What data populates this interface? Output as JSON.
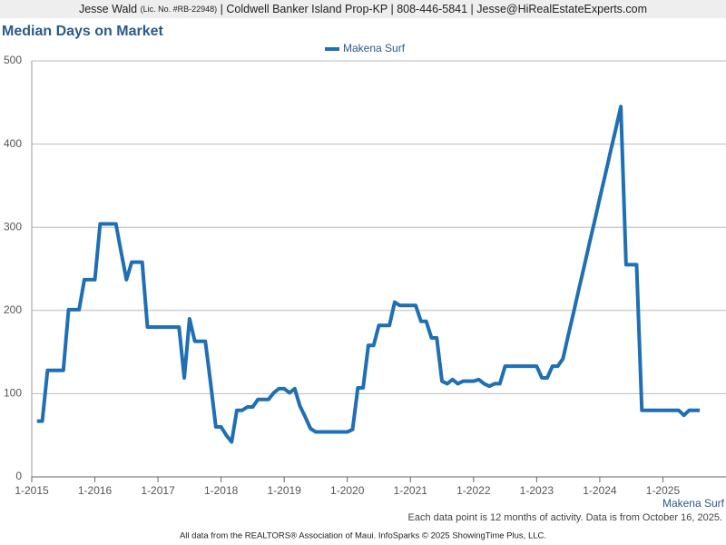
{
  "header": {
    "name": "Jesse Wald",
    "license": "(Lic. No. #RB-22948)",
    "contact": "| Coldwell Banker Island Prop-KP | 808-446-5841 | Jesse@HiRealEstateExperts.com"
  },
  "chart_data": {
    "type": "line",
    "title": "Median Days on Market",
    "x": [
      "2-2015",
      "3-2015",
      "4-2015",
      "5-2015",
      "6-2015",
      "7-2015",
      "8-2015",
      "9-2015",
      "10-2015",
      "11-2015",
      "12-2015",
      "1-2016",
      "2-2016",
      "3-2016",
      "4-2016",
      "5-2016",
      "6-2016",
      "7-2016",
      "8-2016",
      "9-2016",
      "10-2016",
      "11-2016",
      "12-2016",
      "1-2017",
      "2-2017",
      "3-2017",
      "4-2017",
      "5-2017",
      "6-2017",
      "7-2017",
      "8-2017",
      "9-2017",
      "10-2017",
      "11-2017",
      "12-2017",
      "1-2018",
      "2-2018",
      "3-2018",
      "4-2018",
      "5-2018",
      "6-2018",
      "7-2018",
      "8-2018",
      "9-2018",
      "10-2018",
      "11-2018",
      "12-2018",
      "1-2019",
      "2-2019",
      "3-2019",
      "4-2019",
      "5-2019",
      "6-2019",
      "7-2019",
      "8-2019",
      "9-2019",
      "10-2019",
      "11-2019",
      "12-2019",
      "1-2020",
      "2-2020",
      "3-2020",
      "4-2020",
      "5-2020",
      "6-2020",
      "7-2020",
      "8-2020",
      "9-2020",
      "10-2020",
      "11-2020",
      "12-2020",
      "1-2021",
      "2-2021",
      "3-2021",
      "4-2021",
      "5-2021",
      "6-2021",
      "7-2021",
      "8-2021",
      "9-2021",
      "10-2021",
      "11-2021",
      "12-2021",
      "1-2022",
      "2-2022",
      "3-2022",
      "4-2022",
      "5-2022",
      "6-2022",
      "7-2022",
      "8-2022",
      "9-2022",
      "10-2022",
      "11-2022",
      "12-2022",
      "1-2023",
      "2-2023",
      "3-2023",
      "4-2023",
      "5-2023",
      "6-2023",
      "7-2023",
      "8-2023",
      "9-2023",
      "10-2023",
      "11-2023",
      "12-2023",
      "1-2024",
      "2-2024",
      "3-2024",
      "4-2024",
      "5-2024",
      "6-2024",
      "7-2024",
      "8-2024",
      "9-2024",
      "10-2024",
      "11-2024",
      "12-2024",
      "1-2025",
      "2-2025",
      "3-2025",
      "4-2025",
      "5-2025",
      "6-2025",
      "7-2025",
      "8-2025"
    ],
    "series": [
      {
        "name": "Makena Surf",
        "color": "#1f6fb4",
        "values": [
          67,
          67,
          128,
          128,
          128,
          128,
          201,
          201,
          201,
          237,
          237,
          237,
          304,
          304,
          304,
          304,
          270,
          237,
          258,
          258,
          258,
          180,
          180,
          180,
          180,
          180,
          180,
          180,
          119,
          190,
          163,
          163,
          163,
          113,
          60,
          60,
          50,
          42,
          80,
          80,
          84,
          84,
          93,
          93,
          93,
          101,
          106,
          106,
          101,
          106,
          85,
          72,
          58,
          54,
          54,
          54,
          54,
          54,
          54,
          54,
          57,
          107,
          107,
          158,
          158,
          182,
          182,
          182,
          210,
          206,
          206,
          206,
          206,
          187,
          187,
          167,
          167,
          115,
          112,
          117,
          112,
          115,
          115,
          115,
          117,
          112,
          109,
          112,
          112,
          133,
          133,
          133,
          133,
          133,
          133,
          133,
          119,
          119,
          133,
          133,
          142,
          170,
          197,
          225,
          252,
          280,
          307,
          335,
          362,
          390,
          417,
          445,
          255,
          255,
          255,
          80,
          80,
          80,
          80,
          80,
          80,
          80,
          80,
          74,
          80,
          80,
          80
        ]
      }
    ],
    "xlim": [
      "1-2015",
      "1-2026"
    ],
    "xticks": [
      "1-2015",
      "1-2016",
      "1-2017",
      "1-2018",
      "1-2019",
      "1-2020",
      "1-2021",
      "1-2022",
      "1-2023",
      "1-2024",
      "1-2025"
    ],
    "ylim": [
      0,
      500
    ],
    "yticks": [
      0,
      100,
      200,
      300,
      400,
      500
    ],
    "grid": true,
    "legend": "top",
    "note": "Each data point is 12 months of activity. Data is from October 16, 2025."
  },
  "footer": "All data from the REALTORS® Association of Maui. InfoSparks © 2025 ShowingTime Plus, LLC."
}
